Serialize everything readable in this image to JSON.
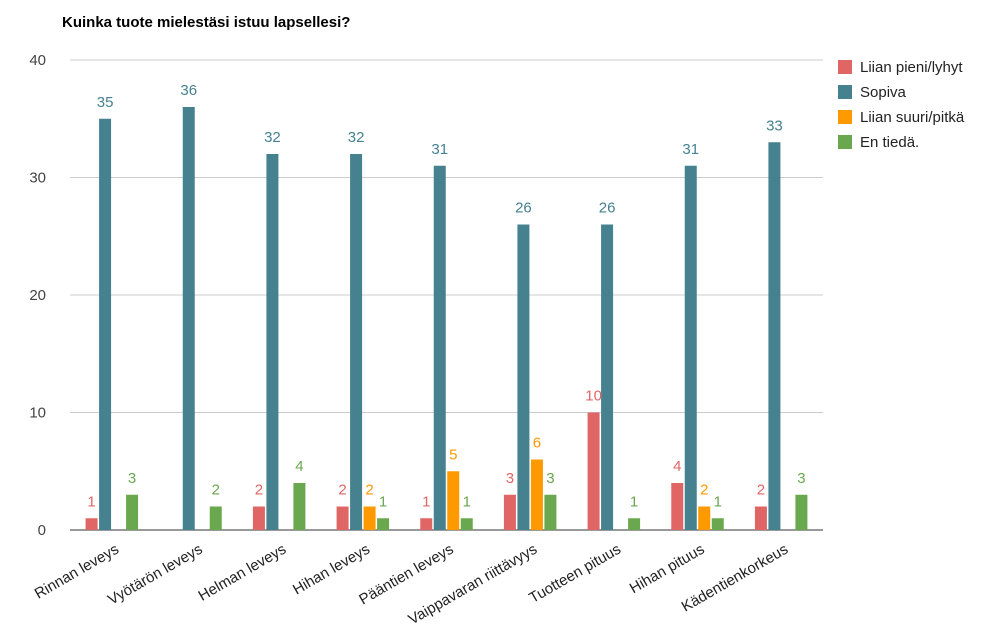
{
  "chart_data": {
    "type": "bar",
    "title": "Kuinka tuote mielestäsi istuu lapsellesi?",
    "xlabel": "",
    "ylabel": "",
    "ylim": [
      0,
      40
    ],
    "yticks": [
      0,
      10,
      20,
      30,
      40
    ],
    "grid": true,
    "legend_position": "right",
    "categories": [
      "Rinnan leveys",
      "Vyötärön leveys",
      "Helman leveys",
      "Hihan leveys",
      "Pääntien leveys",
      "Vaippavaran riittävyys",
      "Tuotteen pituus",
      "Hihan pituus",
      "Kädentienkorkeus"
    ],
    "series": [
      {
        "name": "Liian pieni/lyhyt",
        "color": "#e06666",
        "values": [
          1,
          null,
          2,
          2,
          1,
          3,
          10,
          4,
          2
        ]
      },
      {
        "name": "Sopiva",
        "color": "#45818e",
        "values": [
          35,
          36,
          32,
          32,
          31,
          26,
          26,
          31,
          33
        ]
      },
      {
        "name": "Liian suuri/pitkä",
        "color": "#ff9900",
        "values": [
          null,
          null,
          null,
          2,
          5,
          6,
          null,
          2,
          null
        ]
      },
      {
        "name": "En tiedä.",
        "color": "#6aa84f",
        "values": [
          3,
          2,
          4,
          1,
          1,
          3,
          1,
          1,
          3
        ]
      }
    ]
  }
}
